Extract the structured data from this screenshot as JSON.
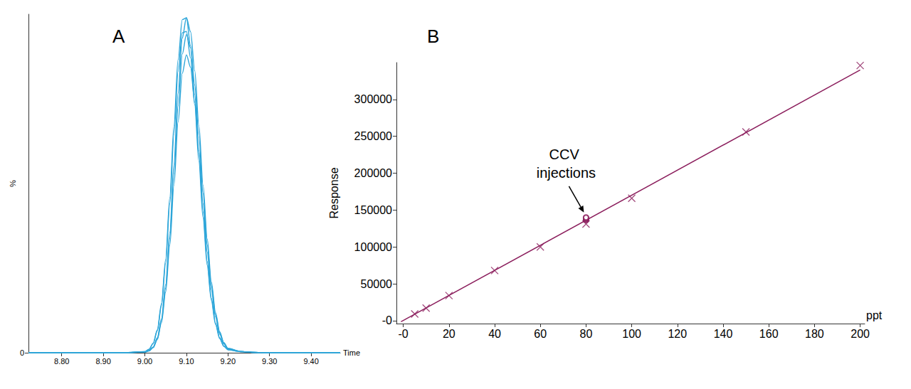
{
  "chart_data": [
    {
      "type": "line",
      "title": "A",
      "xlabel": "Time",
      "ylabel": "%",
      "x": [
        8.72,
        8.8,
        8.9,
        8.95,
        9.0,
        9.01,
        9.02,
        9.03,
        9.04,
        9.05,
        9.06,
        9.07,
        9.08,
        9.09,
        9.1,
        9.11,
        9.12,
        9.13,
        9.14,
        9.15,
        9.16,
        9.17,
        9.18,
        9.19,
        9.2,
        9.23,
        9.26,
        9.3,
        9.4,
        9.47
      ],
      "series": [
        {
          "color": "#2ea6d9",
          "values": [
            0,
            0,
            0,
            0,
            0.3,
            1.0,
            2.8,
            6.8,
            14.5,
            27.5,
            45.8,
            67.1,
            86.6,
            98.4,
            98.9,
            90.7,
            76.3,
            58.9,
            41.6,
            27.0,
            16.1,
            8.8,
            4.4,
            2.0,
            0.9,
            0.3,
            0.1,
            0,
            0,
            0
          ]
        },
        {
          "color": "#2ea6d9",
          "values": [
            0,
            0,
            0,
            0,
            0.2,
            0.6,
            1.7,
            4.4,
            10.0,
            20.1,
            35.6,
            55.7,
            76.7,
            92.9,
            99.0,
            94.8,
            83.3,
            67.1,
            49.5,
            33.6,
            20.9,
            11.9,
            6.2,
            3.0,
            1.3,
            0.4,
            0.1,
            0,
            0,
            0
          ]
        },
        {
          "color": "#2ea6d9",
          "values": [
            0,
            0,
            0,
            0,
            0.3,
            1.0,
            2.7,
            6.5,
            13.9,
            26.4,
            44.0,
            64.4,
            83.1,
            94.5,
            94.9,
            87.1,
            73.2,
            56.5,
            39.9,
            25.9,
            15.5,
            8.4,
            4.2,
            1.9,
            0.9,
            0.3,
            0.1,
            0,
            0,
            0
          ]
        },
        {
          "color": "#2ea6d9",
          "values": [
            0,
            0,
            0,
            0,
            0.2,
            0.6,
            1.6,
            4.1,
            9.5,
            19.1,
            33.8,
            52.9,
            72.9,
            88.2,
            94.0,
            90.1,
            79.1,
            63.7,
            47.0,
            31.9,
            19.8,
            11.3,
            5.9,
            2.8,
            1.2,
            0.4,
            0.1,
            0,
            0,
            0
          ]
        },
        {
          "color": "#2ea6d9",
          "values": [
            0,
            0,
            0,
            0,
            0.2,
            0.5,
            1.5,
            3.9,
            8.9,
            17.9,
            31.7,
            49.5,
            68.2,
            82.5,
            88.0,
            84.3,
            74.0,
            59.7,
            44.0,
            29.8,
            18.6,
            10.6,
            5.5,
            2.6,
            1.1,
            0.4,
            0.1,
            0,
            0,
            0
          ]
        }
      ],
      "xlim": [
        8.72,
        9.47
      ],
      "xticks": [
        {
          "value": 8.8,
          "label": "8.80"
        },
        {
          "value": 8.9,
          "label": "8.90"
        },
        {
          "value": 9.0,
          "label": "9.00"
        },
        {
          "value": 9.1,
          "label": "9.10"
        },
        {
          "value": 9.2,
          "label": "9.20"
        },
        {
          "value": 9.3,
          "label": "9.30"
        },
        {
          "value": 9.4,
          "label": "9.40"
        }
      ],
      "ylim": [
        0,
        100
      ],
      "yticks": [
        0
      ],
      "grid": false
    },
    {
      "type": "scatter",
      "title": "B",
      "xlabel": "ppt",
      "ylabel": "Response",
      "series": [
        {
          "type": "scatter",
          "marker": "cross",
          "color": "#8b1d5c",
          "x": [
            5,
            10,
            20,
            40,
            60,
            80,
            100,
            150,
            200
          ],
          "values": [
            9000,
            17000,
            34000,
            68000,
            100000,
            131000,
            166000,
            256000,
            346000
          ]
        },
        {
          "type": "scatter",
          "marker": "circle",
          "color": "#8b1d5c",
          "x": [
            80,
            80,
            80,
            80,
            80
          ],
          "values": [
            136500,
            137500,
            138500,
            139500,
            140000
          ]
        },
        {
          "type": "line",
          "line_style": "solid",
          "color": "#8b1d5c",
          "x": [
            -1,
            200
          ],
          "values": [
            -1500,
            340000
          ]
        }
      ],
      "annotations": [
        {
          "text": "CCV injections",
          "x": 80,
          "y": 138000
        }
      ],
      "xlim": [
        -3,
        202
      ],
      "xticks": [
        {
          "value": 0,
          "label": "-0"
        },
        20,
        40,
        60,
        80,
        100,
        120,
        140,
        160,
        180,
        200
      ],
      "ylim": [
        -4000,
        350000
      ],
      "yticks": [
        {
          "value": 0,
          "label": "-0"
        },
        50000,
        100000,
        150000,
        200000,
        250000,
        300000
      ],
      "grid": false
    }
  ]
}
